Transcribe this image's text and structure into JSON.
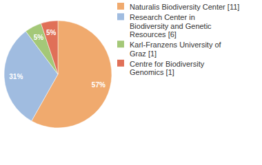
{
  "chart_data": {
    "type": "pie",
    "categories": [
      "Naturalis Biodiversity Center [11]",
      "Research Center in Biodiversity and Genetic Resources [6]",
      "Karl-Franzens University of Graz [1]",
      "Centre for Biodiversity Genomics [1]"
    ],
    "values": [
      57,
      31,
      5,
      5
    ],
    "value_labels": [
      "57%",
      "31%",
      "5%",
      "5%"
    ],
    "colors": [
      "#f0aa6e",
      "#a0bce0",
      "#a4c878",
      "#e07058"
    ],
    "data_labels": true,
    "legend": "right"
  }
}
